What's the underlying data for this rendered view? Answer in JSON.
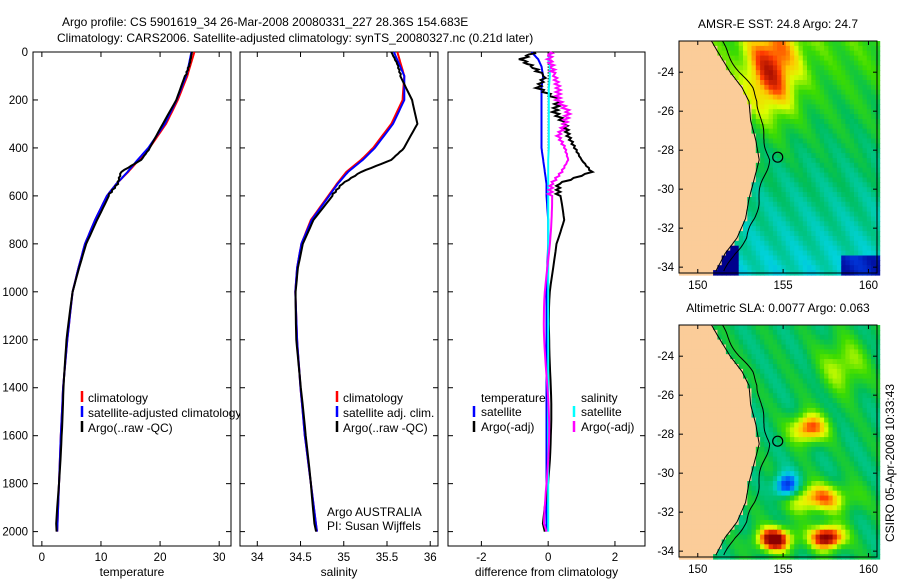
{
  "header": {
    "title_line1": "Argo profile: CS 5901619_34 26-Mar-2008 20080331_227 28.36S 154.683E",
    "title_line2": "Climatology: CARS2006. Satellite-adjusted climatology: synTS_20080327.nc (0.21d later)"
  },
  "footer_stamp": "CSIRO 05-Apr-2008 10:33:43",
  "colors": {
    "climatology": "#ff0000",
    "satellite": "#0000ff",
    "argo": "#000000",
    "sal_satellite": "#00ffff",
    "sal_argo": "#ff00ff",
    "land": "#fbcc99"
  },
  "chart_data": [
    {
      "type": "line",
      "id": "temperature",
      "xlabel": "temperature",
      "xlim": [
        -1.5,
        32
      ],
      "ylim": [
        0,
        2060
      ],
      "xticks": [
        0,
        10,
        20,
        30
      ],
      "yticks": [
        0,
        200,
        400,
        600,
        800,
        1000,
        1200,
        1400,
        1600,
        1800,
        2000
      ],
      "legend": [
        "climatology",
        "satellite-adjusted climatology",
        "Argo(..raw -QC)"
      ],
      "depth": [
        0,
        50,
        100,
        200,
        300,
        400,
        450,
        500,
        550,
        600,
        700,
        800,
        900,
        1000,
        1200,
        1400,
        1600,
        1800,
        2000
      ],
      "series": [
        {
          "name": "climatology",
          "values": [
            25.8,
            25.2,
            24.6,
            23.0,
            21.0,
            18.2,
            16.4,
            14.6,
            12.6,
            11.0,
            9.0,
            7.3,
            6.2,
            5.2,
            4.3,
            3.6,
            3.2,
            2.9,
            2.6
          ]
        },
        {
          "name": "satellite",
          "values": [
            25.3,
            24.9,
            24.4,
            22.8,
            20.8,
            18.0,
            16.2,
            14.5,
            12.6,
            11.0,
            9.0,
            7.3,
            6.2,
            5.2,
            4.3,
            3.6,
            3.2,
            2.9,
            2.6
          ]
        },
        {
          "name": "argo",
          "values": [
            25.4,
            25.0,
            24.3,
            22.9,
            20.6,
            18.3,
            16.8,
            13.4,
            12.8,
            11.2,
            9.2,
            7.4,
            6.3,
            5.3,
            4.3,
            3.6,
            3.2,
            2.9,
            2.5
          ]
        }
      ]
    },
    {
      "type": "line",
      "id": "salinity",
      "xlabel": "salinity",
      "xlim": [
        33.8,
        36.09
      ],
      "ylim": [
        0,
        2060
      ],
      "xticks": [
        34,
        34.5,
        35,
        35.5,
        36
      ],
      "legend": [
        "climatology",
        "satellite adj. clim.",
        "Argo(..raw -QC)"
      ],
      "annotation": [
        "Argo AUSTRALIA",
        "PI: Susan Wijffels"
      ],
      "depth": [
        0,
        50,
        100,
        200,
        300,
        400,
        450,
        500,
        550,
        600,
        700,
        800,
        900,
        1000,
        1200,
        1400,
        1600,
        1800,
        2000
      ],
      "series": [
        {
          "name": "climatology",
          "values": [
            35.62,
            35.66,
            35.7,
            35.68,
            35.55,
            35.34,
            35.2,
            35.03,
            34.92,
            34.82,
            34.62,
            34.51,
            34.46,
            34.44,
            34.46,
            34.5,
            34.55,
            34.62,
            34.69
          ]
        },
        {
          "name": "satellite",
          "values": [
            35.58,
            35.64,
            35.7,
            35.7,
            35.57,
            35.36,
            35.22,
            35.05,
            34.93,
            34.83,
            34.63,
            34.51,
            34.46,
            34.44,
            34.46,
            34.5,
            34.55,
            34.62,
            34.69
          ]
        },
        {
          "name": "argo",
          "values": [
            35.55,
            35.62,
            35.66,
            35.8,
            35.86,
            35.7,
            35.55,
            35.2,
            34.98,
            34.86,
            34.64,
            34.52,
            34.47,
            34.45,
            34.46,
            34.5,
            34.55,
            34.62,
            34.68
          ]
        }
      ]
    },
    {
      "type": "line",
      "id": "difference",
      "xlabel": "difference from climatology",
      "xlim": [
        -3.0,
        2.9
      ],
      "ylim": [
        0,
        2060
      ],
      "xticks": [
        -2,
        0,
        2
      ],
      "legend_left_title": "temperature",
      "legend_right_title": "salinity",
      "legend_left": [
        "satellite",
        "Argo(-adj)"
      ],
      "legend_right": [
        "satellite",
        "Argo(-adj)"
      ],
      "depth": [
        0,
        30,
        60,
        100,
        150,
        200,
        250,
        300,
        350,
        400,
        450,
        500,
        550,
        600,
        700,
        800,
        1000,
        1200,
        1400,
        1600,
        1800,
        2000
      ],
      "series": [
        {
          "name": "temperature satellite",
          "values": [
            -0.5,
            -0.3,
            -0.2,
            -0.15,
            -0.2,
            -0.2,
            -0.2,
            -0.2,
            -0.2,
            -0.2,
            -0.15,
            -0.1,
            -0.05,
            -0.05,
            0,
            0,
            -0.05,
            -0.05,
            -0.05,
            -0.05,
            -0.05,
            -0.05
          ]
        },
        {
          "name": "temperature argo",
          "values": [
            -0.4,
            -0.8,
            -0.5,
            -0.1,
            -0.3,
            0.3,
            0.2,
            0.5,
            0.6,
            0.8,
            1.0,
            1.3,
            0.3,
            0.3,
            0.4,
            0.2,
            0.1,
            0.1,
            0.05,
            0.0,
            0.0,
            -0.1
          ]
        },
        {
          "name": "salinity satellite",
          "values": [
            0.1,
            0.0,
            0.05,
            0.05,
            0.02,
            0.02,
            0.02,
            0.02,
            0.02,
            0.02,
            0.0,
            0.0,
            0.0,
            0.0,
            0.0,
            0.0,
            0.0,
            0.0,
            0.0,
            0.0,
            0.0,
            0.0
          ]
        },
        {
          "name": "salinity argo",
          "values": [
            0.05,
            0.05,
            0.1,
            0.2,
            0.3,
            0.3,
            0.6,
            0.5,
            0.3,
            0.5,
            0.6,
            0.4,
            0.1,
            0.05,
            0.02,
            0.0,
            -0.05,
            -0.05,
            -0.05,
            -0.05,
            -0.05,
            -0.05
          ]
        }
      ]
    },
    {
      "type": "heatmap",
      "id": "sst-map",
      "title": "AMSR-E SST: 24.8 Argo: 24.7",
      "xlim": [
        148.9,
        160.5
      ],
      "ylim": [
        -34.3,
        -22.4
      ],
      "xticks": [
        150,
        155,
        160
      ],
      "yticks": [
        -24,
        -26,
        -28,
        -30,
        -32,
        -34
      ],
      "marker": {
        "lon": 154.683,
        "lat": -28.36
      }
    },
    {
      "type": "heatmap",
      "id": "sla-map",
      "title": "Altimetric SLA: 0.0077 Argo: 0.063",
      "xlim": [
        148.9,
        160.5
      ],
      "ylim": [
        -34.3,
        -22.4
      ],
      "xticks": [
        150,
        155,
        160
      ],
      "yticks": [
        -24,
        -26,
        -28,
        -30,
        -32,
        -34
      ],
      "marker": {
        "lon": 154.683,
        "lat": -28.36
      }
    }
  ]
}
